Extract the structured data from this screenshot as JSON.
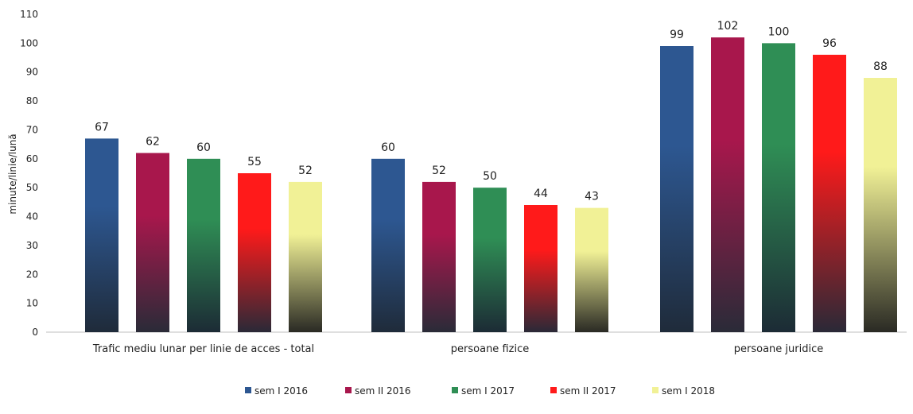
{
  "chart_data": {
    "type": "bar",
    "ylabel": "minute/linie/lună",
    "xlabel": "",
    "ylim": [
      0,
      110
    ],
    "yticks": [
      0,
      10,
      20,
      30,
      40,
      50,
      60,
      70,
      80,
      90,
      100,
      110
    ],
    "grid": false,
    "legend_position": "bottom",
    "categories": [
      "Trafic mediu lunar per linie de acces - total",
      "persoane fizice",
      "persoane juridice"
    ],
    "series": [
      {
        "name": "sem I 2016",
        "values": [
          67,
          60,
          99
        ],
        "colors": [
          "#2d5791",
          "#1f2b3a"
        ]
      },
      {
        "name": "sem II 2016",
        "values": [
          62,
          52,
          102
        ],
        "colors": [
          "#a8174c",
          "#2a2b38"
        ]
      },
      {
        "name": "sem I 2017",
        "values": [
          60,
          50,
          100
        ],
        "colors": [
          "#2f8e55",
          "#1c2b35"
        ]
      },
      {
        "name": "sem II 2017",
        "values": [
          55,
          44,
          96
        ],
        "colors": [
          "#ff1a1a",
          "#2a2937"
        ]
      },
      {
        "name": "sem I 2018",
        "values": [
          52,
          43,
          88
        ],
        "colors": [
          "#f1f196",
          "#2a2a24"
        ]
      }
    ]
  }
}
